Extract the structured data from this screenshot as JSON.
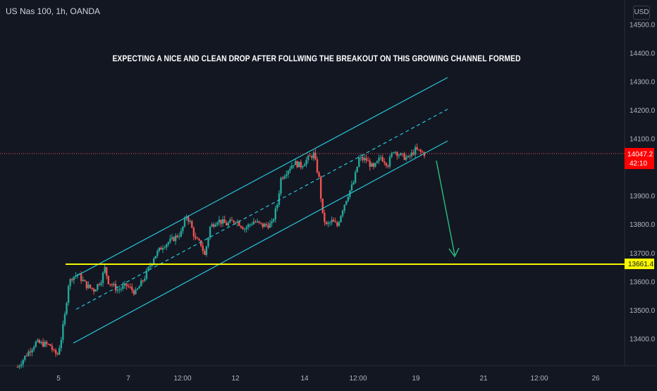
{
  "header": {
    "symbol": "US Nas 100, 1h, OANDA",
    "currency": "USD"
  },
  "annotation": {
    "headline": "EXPECTING A NICE AND CLEAN DROP AFTER FOLLWING THE BREAKOUT ON THIS GROWING CHANNEL FORMED"
  },
  "price_tags": {
    "last_price": "14047.2",
    "countdown": "42:10",
    "support": "13661.4"
  },
  "colors": {
    "background": "#131722",
    "up": "#26a69a",
    "down": "#ef5350",
    "channel": "#26c6da",
    "support": "#f5f500",
    "arrow": "#26c281",
    "last_price_tag": "#ff0000"
  },
  "chart_data": {
    "type": "candlestick",
    "x_ticks": [
      "5",
      "7",
      "12:00",
      "12",
      "14",
      "12:00",
      "19",
      "21",
      "12:00",
      "26"
    ],
    "y_ticks": [
      "14500.0",
      "14400.0",
      "14300.0",
      "14200.0",
      "14100.0",
      "13900.0",
      "13800.0",
      "13700.0",
      "13600.0",
      "13500.0",
      "13400.0"
    ],
    "ylim": [
      13290,
      14550
    ],
    "price_path": [
      {
        "i": 0,
        "price": 13300
      },
      {
        "i": 5,
        "price": 13345
      },
      {
        "i": 10,
        "price": 13385
      },
      {
        "i": 15,
        "price": 13380
      },
      {
        "i": 18,
        "price": 13375
      },
      {
        "i": 20,
        "price": 13350
      },
      {
        "i": 22,
        "price": 13345
      },
      {
        "i": 24,
        "price": 13400
      },
      {
        "i": 26,
        "price": 13480
      },
      {
        "i": 28,
        "price": 13590
      },
      {
        "i": 30,
        "price": 13615
      },
      {
        "i": 33,
        "price": 13625
      },
      {
        "i": 38,
        "price": 13585
      },
      {
        "i": 42,
        "price": 13570
      },
      {
        "i": 46,
        "price": 13605
      },
      {
        "i": 48,
        "price": 13645
      },
      {
        "i": 50,
        "price": 13600
      },
      {
        "i": 55,
        "price": 13570
      },
      {
        "i": 60,
        "price": 13585
      },
      {
        "i": 65,
        "price": 13560
      },
      {
        "i": 70,
        "price": 13615
      },
      {
        "i": 75,
        "price": 13685
      },
      {
        "i": 80,
        "price": 13725
      },
      {
        "i": 85,
        "price": 13745
      },
      {
        "i": 90,
        "price": 13770
      },
      {
        "i": 93,
        "price": 13830
      },
      {
        "i": 95,
        "price": 13805
      },
      {
        "i": 98,
        "price": 13745
      },
      {
        "i": 101,
        "price": 13730
      },
      {
        "i": 103,
        "price": 13690
      },
      {
        "i": 106,
        "price": 13790
      },
      {
        "i": 110,
        "price": 13815
      },
      {
        "i": 115,
        "price": 13800
      },
      {
        "i": 120,
        "price": 13815
      },
      {
        "i": 125,
        "price": 13785
      },
      {
        "i": 130,
        "price": 13810
      },
      {
        "i": 135,
        "price": 13795
      },
      {
        "i": 140,
        "price": 13800
      },
      {
        "i": 143,
        "price": 13870
      },
      {
        "i": 145,
        "price": 13960
      },
      {
        "i": 148,
        "price": 13985
      },
      {
        "i": 152,
        "price": 14015
      },
      {
        "i": 156,
        "price": 14005
      },
      {
        "i": 160,
        "price": 14030
      },
      {
        "i": 163,
        "price": 14045
      },
      {
        "i": 166,
        "price": 13960
      },
      {
        "i": 168,
        "price": 13830
      },
      {
        "i": 170,
        "price": 13795
      },
      {
        "i": 173,
        "price": 13810
      },
      {
        "i": 176,
        "price": 13795
      },
      {
        "i": 179,
        "price": 13855
      },
      {
        "i": 182,
        "price": 13905
      },
      {
        "i": 185,
        "price": 13945
      },
      {
        "i": 188,
        "price": 14030
      },
      {
        "i": 192,
        "price": 14025
      },
      {
        "i": 196,
        "price": 13995
      },
      {
        "i": 200,
        "price": 14035
      },
      {
        "i": 204,
        "price": 14010
      },
      {
        "i": 207,
        "price": 14060
      },
      {
        "i": 211,
        "price": 14040
      },
      {
        "i": 215,
        "price": 14030
      },
      {
        "i": 219,
        "price": 14060
      },
      {
        "i": 224,
        "price": 14047
      }
    ],
    "support_level": 13661.4,
    "last_price": 14047.2
  }
}
